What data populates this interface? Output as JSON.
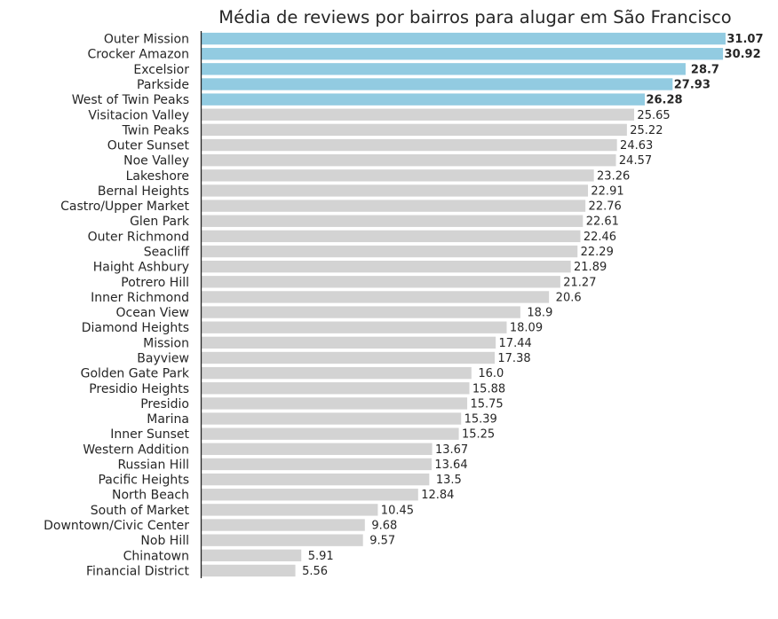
{
  "chart_data": {
    "type": "bar",
    "orientation": "horizontal",
    "title": "Média de reviews por bairros para alugar em São Francisco",
    "xlabel": "",
    "ylabel": "",
    "xlim": [
      0,
      32.6
    ],
    "grid": false,
    "categories": [
      "Outer Mission",
      "Crocker Amazon",
      "Excelsior",
      "Parkside",
      "West of Twin Peaks",
      "Visitacion Valley",
      "Twin Peaks",
      "Outer Sunset",
      "Noe Valley",
      "Lakeshore",
      "Bernal Heights",
      "Castro/Upper Market",
      "Glen Park",
      "Outer Richmond",
      "Seacliff",
      "Haight Ashbury",
      "Potrero Hill",
      "Inner Richmond",
      "Ocean View",
      "Diamond Heights",
      "Mission",
      "Bayview",
      "Golden Gate Park",
      "Presidio Heights",
      "Presidio",
      "Marina",
      "Inner Sunset",
      "Western Addition",
      "Russian Hill",
      "Pacific Heights",
      "North Beach",
      "South of Market",
      "Downtown/Civic Center",
      "Nob Hill",
      "Chinatown",
      "Financial District"
    ],
    "values": [
      31.07,
      30.92,
      28.7,
      27.93,
      26.28,
      25.65,
      25.22,
      24.63,
      24.57,
      23.26,
      22.91,
      22.76,
      22.61,
      22.46,
      22.29,
      21.89,
      21.27,
      20.6,
      18.9,
      18.09,
      17.44,
      17.38,
      16.0,
      15.88,
      15.75,
      15.39,
      15.25,
      13.67,
      13.64,
      13.5,
      12.84,
      10.45,
      9.68,
      9.57,
      5.91,
      5.56
    ],
    "value_labels": [
      "31.07",
      "30.92",
      "28.7",
      "27.93",
      "26.28",
      "25.65",
      "25.22",
      "24.63",
      "24.57",
      "23.26",
      "22.91",
      "22.76",
      "22.61",
      "22.46",
      "22.29",
      "21.89",
      "21.27",
      "20.6",
      "18.9",
      "18.09",
      "17.44",
      "17.38",
      "16.0",
      "15.88",
      "15.75",
      "15.39",
      "15.25",
      "13.67",
      "13.64",
      "13.5",
      "12.84",
      "10.45",
      "9.68",
      "9.57",
      "5.91",
      "5.56"
    ],
    "highlight_count": 5,
    "colors": {
      "highlight": "#92cbe1",
      "default": "#d3d3d3",
      "axis": "#262626",
      "text": "#262626"
    }
  }
}
